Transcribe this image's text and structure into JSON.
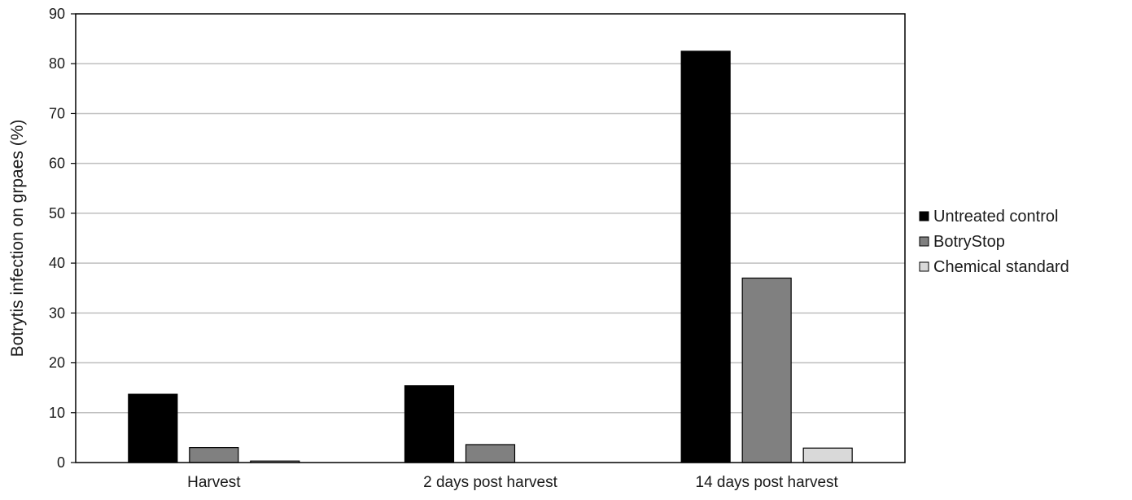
{
  "chart_data": {
    "type": "bar",
    "title": "",
    "xlabel": "",
    "ylabel": "Botrytis infection on grpaes (%)",
    "ylim": [
      0,
      90
    ],
    "yticks": [
      0,
      10,
      20,
      30,
      40,
      50,
      60,
      70,
      80,
      90
    ],
    "grid": true,
    "legend_position": "right",
    "categories": [
      "Harvest",
      "2 days post harvest",
      "14 days post harvest"
    ],
    "series": [
      {
        "name": "Untreated control",
        "color": "#000000",
        "values": [
          13.7,
          15.4,
          82.5
        ]
      },
      {
        "name": "BotryStop",
        "color": "#808080",
        "values": [
          3.0,
          3.6,
          37.0
        ]
      },
      {
        "name": "Chemical standard",
        "color": "#d9d9d9",
        "values": [
          0.3,
          0,
          2.9
        ]
      }
    ]
  }
}
